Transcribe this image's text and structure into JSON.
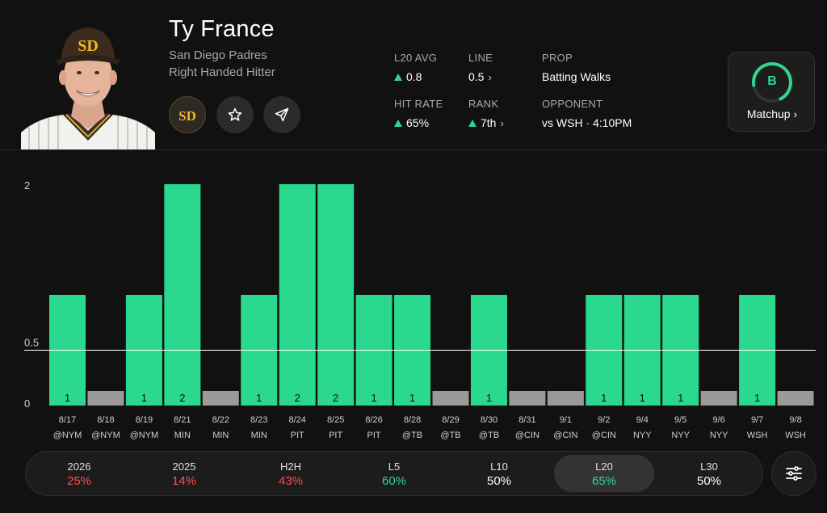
{
  "player": {
    "name": "Ty France",
    "team": "San Diego Padres",
    "handedness": "Right Handed Hitter",
    "team_logo_text": "SD"
  },
  "stats": {
    "l20_avg": {
      "label": "L20 AVG",
      "value": "0.8",
      "trend": "up"
    },
    "line": {
      "label": "LINE",
      "value": "0.5"
    },
    "prop": {
      "label": "PROP",
      "value": "Batting Walks"
    },
    "hit_rate": {
      "label": "HIT RATE",
      "value": "65%",
      "trend": "up"
    },
    "rank": {
      "label": "RANK",
      "value": "7th",
      "trend": "up"
    },
    "opponent": {
      "label": "OPPONENT",
      "value": "vs WSH · 4:10PM"
    }
  },
  "matchup": {
    "grade": "B",
    "label": "Matchup",
    "score": 0.7
  },
  "colors": {
    "hit": "#2ad88e",
    "miss": "#9a9a9a",
    "positive": "#2fd68e",
    "negative": "#ff4d4d",
    "neutral": "#ffffff"
  },
  "chart_data": {
    "type": "bar",
    "line_value": 0.5,
    "ylim": [
      0,
      2
    ],
    "y_ticks": [
      "0",
      "0.5",
      "2"
    ],
    "categories": [
      {
        "date": "8/17",
        "opp": "@NYM",
        "value": 1
      },
      {
        "date": "8/18",
        "opp": "@NYM",
        "value": 0
      },
      {
        "date": "8/19",
        "opp": "@NYM",
        "value": 1
      },
      {
        "date": "8/21",
        "opp": "MIN",
        "value": 2
      },
      {
        "date": "8/22",
        "opp": "MIN",
        "value": 0
      },
      {
        "date": "8/23",
        "opp": "MIN",
        "value": 1
      },
      {
        "date": "8/24",
        "opp": "PIT",
        "value": 2
      },
      {
        "date": "8/25",
        "opp": "PIT",
        "value": 2
      },
      {
        "date": "8/26",
        "opp": "PIT",
        "value": 1
      },
      {
        "date": "8/28",
        "opp": "@TB",
        "value": 1
      },
      {
        "date": "8/29",
        "opp": "@TB",
        "value": 0
      },
      {
        "date": "8/30",
        "opp": "@TB",
        "value": 1
      },
      {
        "date": "8/31",
        "opp": "@CIN",
        "value": 0
      },
      {
        "date": "9/1",
        "opp": "@CIN",
        "value": 0
      },
      {
        "date": "9/2",
        "opp": "@CIN",
        "value": 1
      },
      {
        "date": "9/4",
        "opp": "NYY",
        "value": 1
      },
      {
        "date": "9/5",
        "opp": "NYY",
        "value": 1
      },
      {
        "date": "9/6",
        "opp": "NYY",
        "value": 0
      },
      {
        "date": "9/7",
        "opp": "WSH",
        "value": 1
      },
      {
        "date": "9/8",
        "opp": "WSH",
        "value": 0
      }
    ]
  },
  "tabs": [
    {
      "label": "2026",
      "value": "25%",
      "tone": "negative"
    },
    {
      "label": "2025",
      "value": "14%",
      "tone": "negative"
    },
    {
      "label": "H2H",
      "value": "43%",
      "tone": "negative"
    },
    {
      "label": "L5",
      "value": "60%",
      "tone": "positive"
    },
    {
      "label": "L10",
      "value": "50%",
      "tone": "neutral"
    },
    {
      "label": "L20",
      "value": "65%",
      "tone": "positive",
      "active": true
    },
    {
      "label": "L30",
      "value": "50%",
      "tone": "neutral"
    }
  ]
}
